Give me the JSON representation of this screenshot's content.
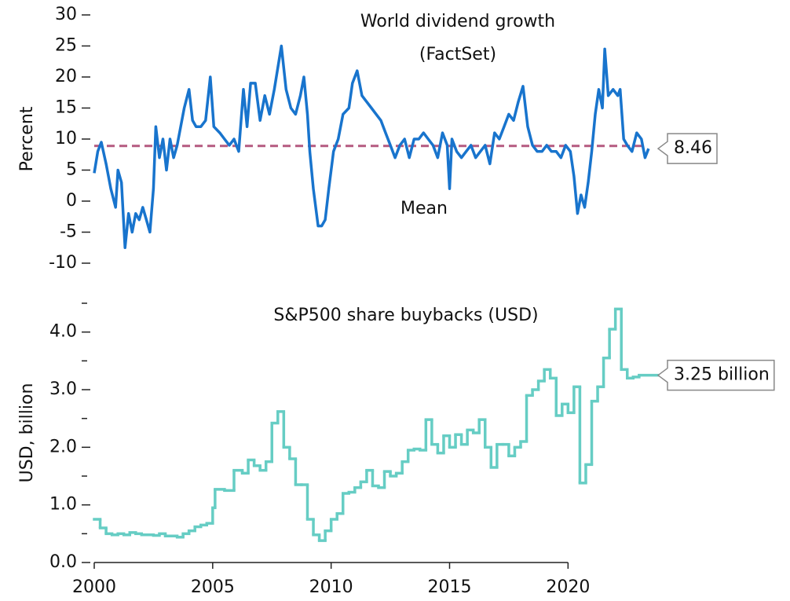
{
  "chart_data": [
    {
      "type": "line",
      "ylabel": "Percent",
      "xlim": [
        2000,
        2024
      ],
      "ylim": [
        -10,
        30
      ],
      "yticks": [
        -10,
        -5,
        0,
        5,
        10,
        15,
        20,
        25,
        30
      ],
      "mean": {
        "label": "Mean",
        "value": 8.9,
        "color": "#b55a80"
      },
      "series": [
        {
          "name_lines": [
            "World dividend growth",
            "(FactSet)"
          ],
          "color": "#1874cd",
          "step": false,
          "end_label": "8.46",
          "x": [
            2000.0,
            2000.15,
            2000.3,
            2000.5,
            2000.7,
            2000.9,
            2001.0,
            2001.15,
            2001.3,
            2001.45,
            2001.6,
            2001.75,
            2001.9,
            2002.05,
            2002.2,
            2002.35,
            2002.5,
            2002.6,
            2002.75,
            2002.9,
            2003.05,
            2003.2,
            2003.35,
            2003.5,
            2003.65,
            2003.8,
            2004.0,
            2004.15,
            2004.3,
            2004.5,
            2004.7,
            2004.9,
            2005.05,
            2005.3,
            2005.5,
            2005.7,
            2005.9,
            2006.1,
            2006.3,
            2006.45,
            2006.6,
            2006.8,
            2007.0,
            2007.2,
            2007.4,
            2007.6,
            2007.9,
            2008.1,
            2008.3,
            2008.5,
            2008.7,
            2008.85,
            2009.0,
            2009.1,
            2009.25,
            2009.45,
            2009.6,
            2009.75,
            2009.9,
            2010.1,
            2010.3,
            2010.5,
            2010.75,
            2010.9,
            2011.1,
            2011.3,
            2011.5,
            2011.7,
            2011.9,
            2012.1,
            2012.3,
            2012.5,
            2012.7,
            2012.9,
            2013.1,
            2013.3,
            2013.5,
            2013.7,
            2013.9,
            2014.1,
            2014.3,
            2014.5,
            2014.7,
            2014.9,
            2015.0,
            2015.1,
            2015.3,
            2015.5,
            2015.7,
            2015.9,
            2016.1,
            2016.3,
            2016.5,
            2016.7,
            2016.9,
            2017.1,
            2017.3,
            2017.5,
            2017.7,
            2017.9,
            2018.1,
            2018.3,
            2018.5,
            2018.7,
            2018.9,
            2019.1,
            2019.3,
            2019.5,
            2019.7,
            2019.9,
            2020.1,
            2020.25,
            2020.4,
            2020.55,
            2020.7,
            2020.85,
            2021.0,
            2021.15,
            2021.3,
            2021.45,
            2021.55,
            2021.7,
            2021.9,
            2022.1,
            2022.2,
            2022.35,
            2022.5,
            2022.7,
            2022.9,
            2023.1,
            2023.25,
            2023.4
          ],
          "values": [
            4.5,
            8,
            9.5,
            6,
            2,
            -1,
            5,
            3,
            -7.5,
            -2,
            -5,
            -2,
            -3,
            -1,
            -3,
            -5,
            2,
            12,
            7,
            10,
            5,
            10,
            7,
            9,
            12,
            15,
            18,
            13,
            12,
            12,
            13,
            20,
            12,
            11,
            10,
            9,
            10,
            8,
            18,
            12,
            19,
            19,
            13,
            17,
            14,
            18,
            25,
            18,
            15,
            14,
            17,
            20,
            14,
            8,
            2,
            -4,
            -4,
            -3,
            2,
            8,
            10,
            14,
            15,
            19,
            21,
            17,
            16,
            15,
            14,
            13,
            11,
            9,
            7,
            9,
            10,
            7,
            10,
            10,
            11,
            10,
            9,
            7,
            11,
            9,
            2,
            10,
            8,
            7,
            8,
            9,
            7,
            8,
            9,
            6,
            11,
            10,
            12,
            14,
            13,
            16,
            18.5,
            12,
            9,
            8,
            8,
            9,
            8,
            8,
            7,
            9,
            8,
            4,
            -2,
            1,
            -1,
            3,
            8,
            14,
            18,
            15,
            24.5,
            17,
            18,
            17,
            18,
            10,
            9,
            8,
            11,
            10,
            7,
            8.46
          ]
        }
      ]
    },
    {
      "type": "line",
      "ylabel": "USD, billion",
      "xlim": [
        2000,
        2024
      ],
      "ylim": [
        0,
        4.5
      ],
      "yticks": [
        {
          "value": 0,
          "label": "0.0"
        },
        {
          "value": 1,
          "label": "1.0"
        },
        {
          "value": 2,
          "label": "2.0"
        },
        {
          "value": 3,
          "label": "3.0"
        },
        {
          "value": 4,
          "label": "4.0"
        }
      ],
      "yminorticks": [
        0.5,
        1.5,
        2.5,
        3.5,
        4.5
      ],
      "xticks": [
        2000,
        2005,
        2010,
        2015,
        2020
      ],
      "series": [
        {
          "name": "S&P500 share buybacks (USD)",
          "color": "#66cdc4",
          "step": true,
          "end_label": "3.25 billion",
          "x": [
            2000.0,
            2000.25,
            2000.5,
            2000.75,
            2001.0,
            2001.25,
            2001.5,
            2001.75,
            2002.0,
            2002.5,
            2002.75,
            2003.0,
            2003.5,
            2003.75,
            2004.0,
            2004.25,
            2004.5,
            2004.75,
            2005.0,
            2005.1,
            2005.5,
            2005.9,
            2006.25,
            2006.5,
            2006.75,
            2007.0,
            2007.25,
            2007.5,
            2007.75,
            2008.0,
            2008.25,
            2008.5,
            2008.75,
            2009.0,
            2009.25,
            2009.5,
            2009.75,
            2010.0,
            2010.25,
            2010.5,
            2010.75,
            2011.0,
            2011.25,
            2011.5,
            2011.75,
            2012.0,
            2012.25,
            2012.5,
            2012.75,
            2013.0,
            2013.25,
            2013.5,
            2013.75,
            2014.0,
            2014.25,
            2014.5,
            2014.75,
            2015.0,
            2015.25,
            2015.5,
            2015.75,
            2016.0,
            2016.25,
            2016.5,
            2016.75,
            2017.0,
            2017.25,
            2017.5,
            2017.75,
            2018.0,
            2018.25,
            2018.5,
            2018.75,
            2019.0,
            2019.25,
            2019.5,
            2019.75,
            2020.0,
            2020.25,
            2020.5,
            2020.75,
            2021.0,
            2021.25,
            2021.5,
            2021.75,
            2022.0,
            2022.25,
            2022.5,
            2022.75,
            2023.0
          ],
          "values": [
            0.75,
            0.6,
            0.5,
            0.48,
            0.5,
            0.48,
            0.52,
            0.5,
            0.48,
            0.47,
            0.5,
            0.46,
            0.44,
            0.5,
            0.55,
            0.62,
            0.65,
            0.68,
            0.95,
            1.27,
            1.25,
            1.6,
            1.55,
            1.78,
            1.68,
            1.6,
            1.75,
            2.42,
            2.62,
            2.0,
            1.8,
            1.35,
            1.35,
            0.75,
            0.48,
            0.38,
            0.55,
            0.75,
            0.85,
            1.2,
            1.22,
            1.3,
            1.4,
            1.6,
            1.33,
            1.3,
            1.58,
            1.5,
            1.55,
            1.75,
            1.95,
            1.97,
            1.95,
            2.48,
            2.05,
            1.9,
            2.2,
            2.0,
            2.22,
            2.05,
            2.3,
            2.25,
            2.48,
            2.0,
            1.65,
            2.05,
            2.05,
            1.85,
            2.0,
            2.1,
            2.9,
            3.0,
            3.15,
            3.35,
            3.2,
            2.55,
            2.75,
            2.6,
            3.05,
            1.38,
            1.7,
            2.8,
            3.05,
            3.55,
            4.05,
            4.4,
            3.35,
            3.2,
            3.22,
            3.25
          ]
        }
      ]
    }
  ]
}
